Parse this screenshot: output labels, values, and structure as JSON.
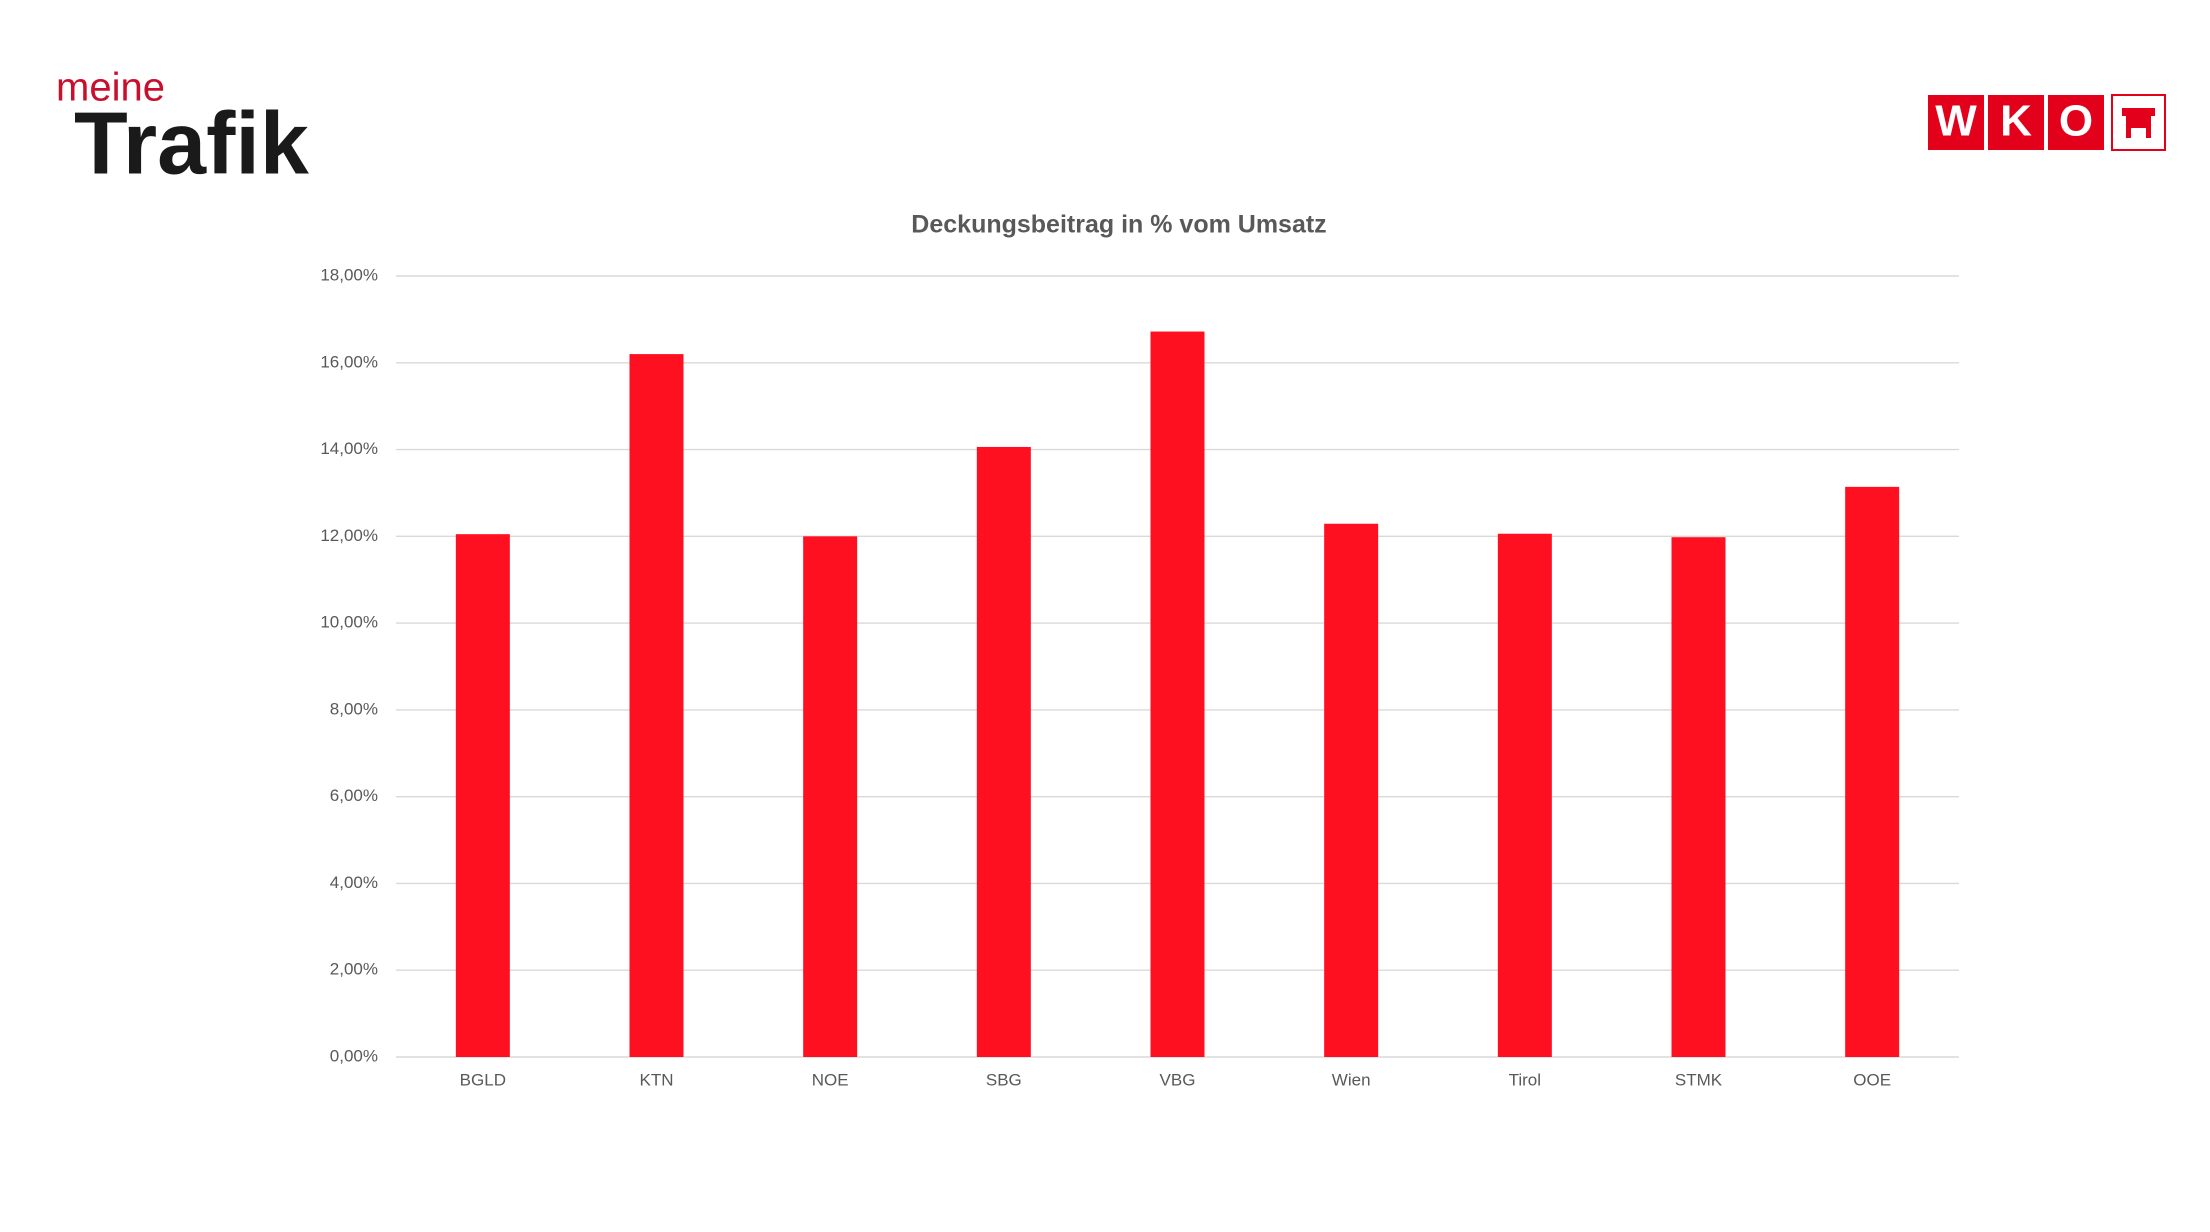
{
  "logos": {
    "left": {
      "top": "meine",
      "bottom": "Trafik"
    },
    "right": [
      "W",
      "K",
      "O"
    ]
  },
  "chart_data": {
    "type": "bar",
    "title": "Deckungsbeitrag  in % vom Umsatz",
    "categories": [
      "BGLD",
      "KTN",
      "NOE",
      "SBG",
      "VBG",
      "Wien",
      "Tirol",
      "STMK",
      "OOE"
    ],
    "values": [
      12.05,
      16.2,
      12.0,
      14.06,
      16.72,
      12.29,
      12.06,
      11.98,
      13.14
    ],
    "color": "#ff1020",
    "ylim": [
      0,
      18
    ],
    "yticks": [
      {
        "value": 0,
        "label": "0,00%"
      },
      {
        "value": 2,
        "label": "2,00%"
      },
      {
        "value": 4,
        "label": "4,00%"
      },
      {
        "value": 6,
        "label": "6,00%"
      },
      {
        "value": 8,
        "label": "8,00%"
      },
      {
        "value": 10,
        "label": "10,00%"
      },
      {
        "value": 12,
        "label": "12,00%"
      },
      {
        "value": 14,
        "label": "14,00%"
      },
      {
        "value": 16,
        "label": "16,00%"
      },
      {
        "value": 18,
        "label": "18,00%"
      }
    ],
    "grid": true
  }
}
